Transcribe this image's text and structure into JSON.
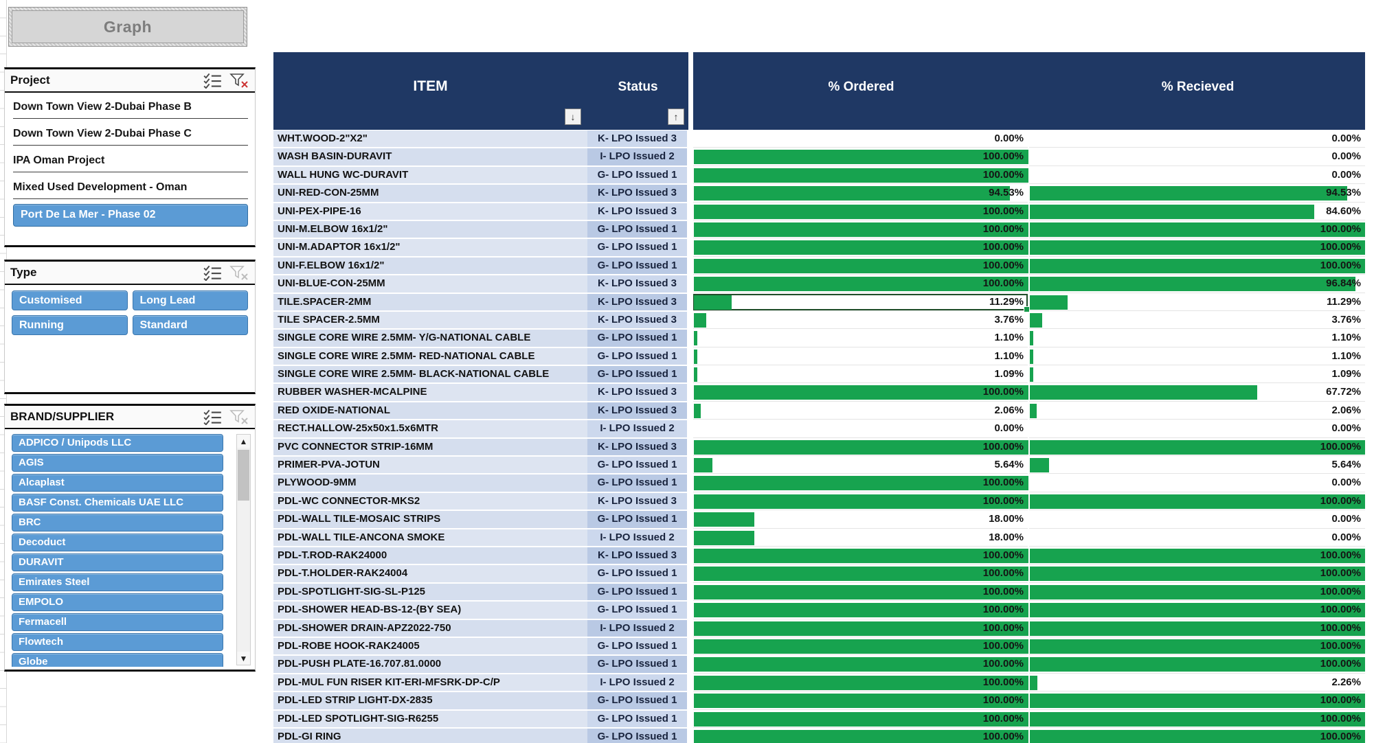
{
  "graph_button": {
    "label": "Graph"
  },
  "slicers": {
    "project": {
      "title": "Project",
      "filter_active": true,
      "items": [
        {
          "label": "Down Town View 2-Dubai Phase B",
          "selected": false
        },
        {
          "label": "Down Town View 2-Dubai Phase C",
          "selected": false
        },
        {
          "label": "IPA Oman Project",
          "selected": false
        },
        {
          "label": "Mixed Used Development - Oman",
          "selected": false
        },
        {
          "label": "Port De La Mer - Phase 02",
          "selected": true
        }
      ]
    },
    "type": {
      "title": "Type",
      "filter_active": false,
      "items": [
        {
          "label": "Customised",
          "selected": true
        },
        {
          "label": "Long Lead",
          "selected": true
        },
        {
          "label": "Running",
          "selected": true
        },
        {
          "label": "Standard",
          "selected": true
        }
      ]
    },
    "brand": {
      "title": "BRAND/SUPPLIER",
      "filter_active": false,
      "items": [
        {
          "label": "ADPICO / Unipods LLC",
          "selected": true
        },
        {
          "label": "AGIS",
          "selected": true
        },
        {
          "label": "Alcaplast",
          "selected": true
        },
        {
          "label": "BASF Const. Chemicals UAE LLC",
          "selected": true
        },
        {
          "label": "BRC",
          "selected": true
        },
        {
          "label": "Decoduct",
          "selected": true
        },
        {
          "label": "DURAVIT",
          "selected": true
        },
        {
          "label": "Emirates Steel",
          "selected": true
        },
        {
          "label": "EMPOLO",
          "selected": true
        },
        {
          "label": "Fermacell",
          "selected": true
        },
        {
          "label": "Flowtech",
          "selected": true
        },
        {
          "label": "Globe",
          "selected": true
        }
      ]
    }
  },
  "table": {
    "headers": {
      "item": "ITEM",
      "status": "Status",
      "ordered": "% Ordered",
      "received": "% Recieved"
    },
    "sort_indicators": {
      "item": "down",
      "status": "up"
    },
    "selected_cell": {
      "row_index": 10,
      "column": "ordered",
      "value": "11.29%"
    },
    "rows": [
      {
        "item": "WHT.WOOD-2\"X2\"",
        "status": "K- LPO Issued 3",
        "ordered": "0.00%",
        "received": "0.00%"
      },
      {
        "item": "WASH BASIN-DURAVIT",
        "status": "I- LPO Issued 2",
        "ordered": "100.00%",
        "received": "0.00%"
      },
      {
        "item": "WALL HUNG WC-DURAVIT",
        "status": "G- LPO Issued 1",
        "ordered": "100.00%",
        "received": "0.00%"
      },
      {
        "item": "UNI-RED-CON-25MM",
        "status": "K- LPO Issued 3",
        "ordered": "94.53%",
        "received": "94.53%"
      },
      {
        "item": "UNI-PEX-PIPE-16",
        "status": "K- LPO Issued 3",
        "ordered": "100.00%",
        "received": "84.60%"
      },
      {
        "item": "UNI-M.ELBOW 16x1/2\"",
        "status": "G- LPO Issued 1",
        "ordered": "100.00%",
        "received": "100.00%"
      },
      {
        "item": "UNI-M.ADAPTOR 16x1/2\"",
        "status": "G- LPO Issued 1",
        "ordered": "100.00%",
        "received": "100.00%"
      },
      {
        "item": "UNI-F.ELBOW 16x1/2\"",
        "status": "G- LPO Issued 1",
        "ordered": "100.00%",
        "received": "100.00%"
      },
      {
        "item": "UNI-BLUE-CON-25MM",
        "status": "K- LPO Issued 3",
        "ordered": "100.00%",
        "received": "96.84%"
      },
      {
        "item": "TILE.SPACER-2MM",
        "status": "K- LPO Issued 3",
        "ordered": "11.29%",
        "received": "11.29%"
      },
      {
        "item": "TILE SPACER-2.5MM",
        "status": "K- LPO Issued 3",
        "ordered": "3.76%",
        "received": "3.76%"
      },
      {
        "item": "SINGLE CORE WIRE 2.5MM- Y/G-NATIONAL CABLE",
        "status": "G- LPO Issued 1",
        "ordered": "1.10%",
        "received": "1.10%"
      },
      {
        "item": "SINGLE CORE WIRE 2.5MM- RED-NATIONAL CABLE",
        "status": "G- LPO Issued 1",
        "ordered": "1.10%",
        "received": "1.10%"
      },
      {
        "item": "SINGLE CORE WIRE 2.5MM- BLACK-NATIONAL CABLE",
        "status": "G- LPO Issued 1",
        "ordered": "1.09%",
        "received": "1.09%"
      },
      {
        "item": "RUBBER WASHER-MCALPINE",
        "status": "K- LPO Issued 3",
        "ordered": "100.00%",
        "received": "67.72%"
      },
      {
        "item": "RED OXIDE-NATIONAL",
        "status": "K- LPO Issued 3",
        "ordered": "2.06%",
        "received": "2.06%"
      },
      {
        "item": "RECT.HALLOW-25x50x1.5x6MTR",
        "status": "I- LPO Issued 2",
        "ordered": "0.00%",
        "received": "0.00%"
      },
      {
        "item": "PVC CONNECTOR STRIP-16MM",
        "status": "K- LPO Issued 3",
        "ordered": "100.00%",
        "received": "100.00%"
      },
      {
        "item": "PRIMER-PVA-JOTUN",
        "status": "G- LPO Issued 1",
        "ordered": "5.64%",
        "received": "5.64%"
      },
      {
        "item": "PLYWOOD-9MM",
        "status": "G- LPO Issued 1",
        "ordered": "100.00%",
        "received": "0.00%"
      },
      {
        "item": "PDL-WC CONNECTOR-MKS2",
        "status": "K- LPO Issued 3",
        "ordered": "100.00%",
        "received": "100.00%"
      },
      {
        "item": "PDL-WALL TILE-MOSAIC STRIPS",
        "status": "G- LPO Issued 1",
        "ordered": "18.00%",
        "received": "0.00%"
      },
      {
        "item": "PDL-WALL TILE-ANCONA SMOKE",
        "status": "I- LPO Issued 2",
        "ordered": "18.00%",
        "received": "0.00%"
      },
      {
        "item": "PDL-T.ROD-RAK24000",
        "status": "K- LPO Issued 3",
        "ordered": "100.00%",
        "received": "100.00%"
      },
      {
        "item": "PDL-T.HOLDER-RAK24004",
        "status": "G- LPO Issued 1",
        "ordered": "100.00%",
        "received": "100.00%"
      },
      {
        "item": "PDL-SPOTLIGHT-SIG-SL-P125",
        "status": "G- LPO Issued 1",
        "ordered": "100.00%",
        "received": "100.00%"
      },
      {
        "item": "PDL-SHOWER HEAD-BS-12-(BY SEA)",
        "status": "G- LPO Issued 1",
        "ordered": "100.00%",
        "received": "100.00%"
      },
      {
        "item": "PDL-SHOWER DRAIN-APZ2022-750",
        "status": "I- LPO Issued 2",
        "ordered": "100.00%",
        "received": "100.00%"
      },
      {
        "item": "PDL-ROBE HOOK-RAK24005",
        "status": "G- LPO Issued 1",
        "ordered": "100.00%",
        "received": "100.00%"
      },
      {
        "item": "PDL-PUSH PLATE-16.707.81.0000",
        "status": "G- LPO Issued 1",
        "ordered": "100.00%",
        "received": "100.00%"
      },
      {
        "item": "PDL-MUL FUN RISER KIT-ERI-MFSRK-DP-C/P",
        "status": "I- LPO Issued 2",
        "ordered": "100.00%",
        "received": "2.26%"
      },
      {
        "item": "PDL-LED STRIP LIGHT-DX-2835",
        "status": "G- LPO Issued 1",
        "ordered": "100.00%",
        "received": "100.00%"
      },
      {
        "item": "PDL-LED SPOTLIGHT-SIG-R6255",
        "status": "G- LPO Issued 1",
        "ordered": "100.00%",
        "received": "100.00%"
      },
      {
        "item": "PDL-GI RING",
        "status": "G- LPO Issued 1",
        "ordered": "100.00%",
        "received": "100.00%"
      }
    ]
  },
  "colors": {
    "header_navy": "#1F3864",
    "data_bar_green": "#17A34F",
    "slicer_button_blue": "#5B9BD5",
    "item_cell_fill": "#DDE4F1",
    "status_cell_fill_alt": "#B9C9E4"
  }
}
